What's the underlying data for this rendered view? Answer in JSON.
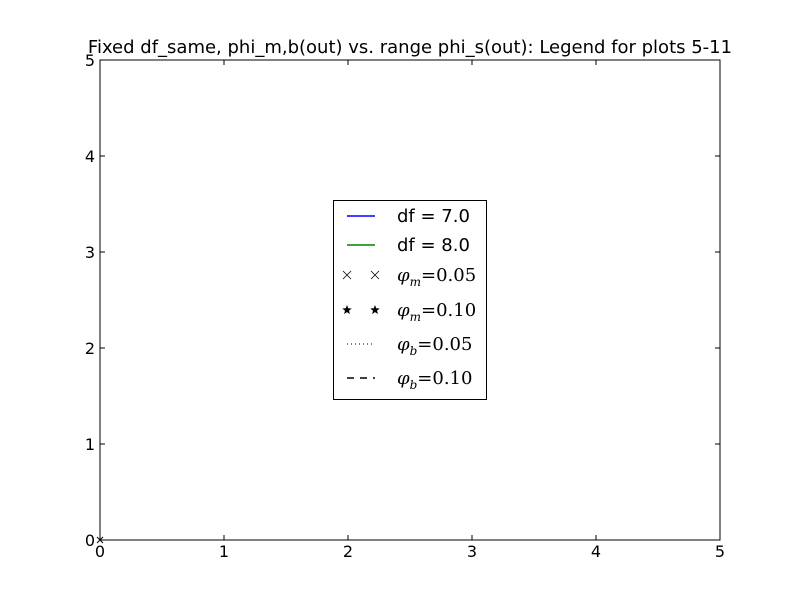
{
  "chart_data": {
    "type": "line",
    "title": "Fixed df_same, phi_m,b(out) vs. range phi_s(out): Legend for plots 5-11",
    "xlabel": "",
    "ylabel": "",
    "xlim": [
      0,
      5
    ],
    "ylim": [
      0,
      5
    ],
    "x_ticks": [
      "0",
      "1",
      "2",
      "3",
      "4",
      "5"
    ],
    "y_ticks": [
      "0",
      "1",
      "2",
      "3",
      "4",
      "5"
    ],
    "grid": false,
    "legend_position": "center",
    "legend": [
      {
        "kind": "line",
        "color": "#0000ff",
        "label": "df = 7.0"
      },
      {
        "kind": "line",
        "color": "#008000",
        "label": "df = 8.0"
      },
      {
        "kind": "marker-x",
        "color": "#000000",
        "symbol": "φ",
        "sub": "m",
        "text": "=0.05"
      },
      {
        "kind": "marker-star",
        "color": "#000000",
        "symbol": "φ",
        "sub": "m",
        "text": "=0.10"
      },
      {
        "kind": "dotted",
        "color": "#000000",
        "symbol": "φ",
        "sub": "b",
        "text": "=0.05"
      },
      {
        "kind": "dashed",
        "color": "#000000",
        "symbol": "φ",
        "sub": "b",
        "text": "=0.10"
      }
    ],
    "series": [
      {
        "x": [
          0
        ],
        "y": [
          0
        ],
        "marker": "x",
        "color": "#000000"
      }
    ]
  }
}
